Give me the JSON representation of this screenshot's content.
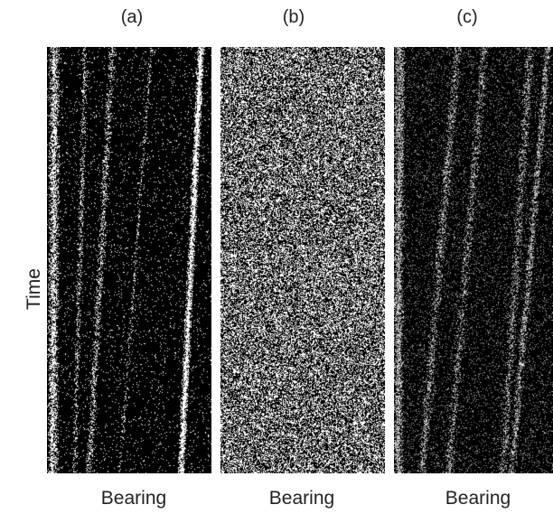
{
  "y_axis_label": "Time",
  "panels": [
    {
      "label": "(a)",
      "xlabel": "Bearing"
    },
    {
      "label": "(b)",
      "xlabel": "Bearing"
    },
    {
      "label": "(c)",
      "xlabel": "Bearing"
    }
  ]
}
